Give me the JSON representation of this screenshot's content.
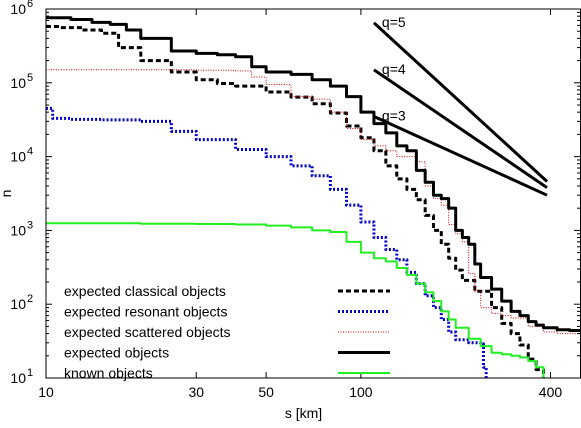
{
  "chart_data": {
    "type": "line",
    "title": "",
    "xlabel": "s [km]",
    "ylabel": "n",
    "xscale": "log",
    "yscale": "log",
    "xlim": [
      10,
      500
    ],
    "ylim": [
      10,
      1000000
    ],
    "x_ticks": [
      {
        "value": 10,
        "label": "10"
      },
      {
        "value": 30,
        "label": "30"
      },
      {
        "value": 50,
        "label": "50"
      },
      {
        "value": 100,
        "label": "100"
      },
      {
        "value": 400,
        "label": "400"
      }
    ],
    "y_ticks": [
      {
        "value": 10,
        "base": "10",
        "exp": "1"
      },
      {
        "value": 100,
        "base": "10",
        "exp": "2"
      },
      {
        "value": 1000,
        "base": "10",
        "exp": "3"
      },
      {
        "value": 10000,
        "base": "10",
        "exp": "4"
      },
      {
        "value": 100000,
        "base": "10",
        "exp": "5"
      },
      {
        "value": 1000000,
        "base": "10",
        "exp": "6"
      }
    ],
    "grid": false,
    "legend_position": "bottom-left",
    "series": [
      {
        "name": "expected classical objects",
        "color": "#000000",
        "style": "dashed",
        "width": 3,
        "points": [
          [
            10,
            580000
          ],
          [
            11,
            560000
          ],
          [
            13,
            520000
          ],
          [
            15,
            470000
          ],
          [
            17,
            300000
          ],
          [
            20,
            200000
          ],
          [
            25,
            140000
          ],
          [
            30,
            110000
          ],
          [
            35,
            98000
          ],
          [
            40,
            90000
          ],
          [
            50,
            75000
          ],
          [
            60,
            64000
          ],
          [
            70,
            52000
          ],
          [
            80,
            39000
          ],
          [
            90,
            26000
          ],
          [
            100,
            18000
          ],
          [
            110,
            12000
          ],
          [
            120,
            7500
          ],
          [
            130,
            5000
          ],
          [
            140,
            3600
          ],
          [
            150,
            2600
          ],
          [
            160,
            1600
          ],
          [
            170,
            1000
          ],
          [
            180,
            650
          ],
          [
            190,
            420
          ],
          [
            200,
            290
          ],
          [
            210,
            210
          ],
          [
            230,
            150
          ],
          [
            260,
            90
          ],
          [
            280,
            55
          ],
          [
            300,
            40
          ],
          [
            320,
            28
          ],
          [
            340,
            18
          ],
          [
            360,
            13
          ],
          [
            380,
            10
          ]
        ]
      },
      {
        "name": "expected resonant objects",
        "color": "#0000cc",
        "style": "dotted",
        "width": 3,
        "points": [
          [
            10,
            45000
          ],
          [
            10.5,
            33000
          ],
          [
            12,
            32000
          ],
          [
            15,
            31500
          ],
          [
            20,
            30000
          ],
          [
            25,
            22000
          ],
          [
            30,
            17000
          ],
          [
            40,
            12500
          ],
          [
            50,
            10000
          ],
          [
            60,
            7500
          ],
          [
            70,
            5500
          ],
          [
            80,
            3600
          ],
          [
            90,
            2200
          ],
          [
            100,
            1300
          ],
          [
            110,
            800
          ],
          [
            120,
            550
          ],
          [
            130,
            400
          ],
          [
            140,
            270
          ],
          [
            150,
            190
          ],
          [
            160,
            130
          ],
          [
            170,
            90
          ],
          [
            180,
            62
          ],
          [
            190,
            42
          ],
          [
            200,
            33
          ],
          [
            220,
            30
          ],
          [
            240,
            29
          ],
          [
            245,
            14
          ],
          [
            250,
            10
          ]
        ]
      },
      {
        "name": "expected scattered objects",
        "color": "#dd0000",
        "style": "fine-dotted",
        "width": 1,
        "points": [
          [
            10,
            150000
          ],
          [
            20,
            150000
          ],
          [
            30,
            148000
          ],
          [
            40,
            145000
          ],
          [
            45,
            120000
          ],
          [
            50,
            95000
          ],
          [
            60,
            65000
          ],
          [
            70,
            60000
          ],
          [
            80,
            40000
          ],
          [
            90,
            24000
          ],
          [
            100,
            17000
          ],
          [
            110,
            14000
          ],
          [
            120,
            12000
          ],
          [
            130,
            10000
          ],
          [
            150,
            8500
          ],
          [
            160,
            4000
          ],
          [
            170,
            2700
          ],
          [
            180,
            2200
          ],
          [
            190,
            1200
          ],
          [
            200,
            900
          ],
          [
            210,
            700
          ],
          [
            220,
            260
          ],
          [
            230,
            150
          ],
          [
            240,
            90
          ],
          [
            260,
            75
          ],
          [
            280,
            70
          ],
          [
            300,
            65
          ],
          [
            340,
            50
          ],
          [
            380,
            42
          ],
          [
            420,
            40
          ],
          [
            500,
            40
          ]
        ]
      },
      {
        "name": "expected objects",
        "color": "#000000",
        "style": "solid",
        "width": 3,
        "points": [
          [
            10,
            760000
          ],
          [
            12,
            720000
          ],
          [
            14,
            660000
          ],
          [
            16,
            620000
          ],
          [
            18,
            520000
          ],
          [
            20,
            400000
          ],
          [
            25,
            270000
          ],
          [
            30,
            250000
          ],
          [
            35,
            240000
          ],
          [
            40,
            225000
          ],
          [
            45,
            165000
          ],
          [
            50,
            140000
          ],
          [
            60,
            130000
          ],
          [
            70,
            110000
          ],
          [
            80,
            90000
          ],
          [
            90,
            65000
          ],
          [
            100,
            40000
          ],
          [
            110,
            28000
          ],
          [
            120,
            21000
          ],
          [
            130,
            14000
          ],
          [
            140,
            12000
          ],
          [
            150,
            6500
          ],
          [
            160,
            4500
          ],
          [
            170,
            3000
          ],
          [
            180,
            2700
          ],
          [
            190,
            2000
          ],
          [
            200,
            1000
          ],
          [
            210,
            800
          ],
          [
            220,
            650
          ],
          [
            230,
            350
          ],
          [
            240,
            230
          ],
          [
            260,
            160
          ],
          [
            280,
            110
          ],
          [
            300,
            80
          ],
          [
            320,
            70
          ],
          [
            340,
            58
          ],
          [
            360,
            52
          ],
          [
            380,
            48
          ],
          [
            420,
            45
          ],
          [
            460,
            44
          ],
          [
            500,
            43
          ]
        ]
      },
      {
        "name": "known objects",
        "color": "#22ee22",
        "style": "solid",
        "width": 2,
        "points": [
          [
            10,
            1250
          ],
          [
            20,
            1230
          ],
          [
            30,
            1220
          ],
          [
            40,
            1200
          ],
          [
            50,
            1160
          ],
          [
            60,
            1100
          ],
          [
            70,
            1000
          ],
          [
            80,
            950
          ],
          [
            90,
            700
          ],
          [
            100,
            500
          ],
          [
            110,
            420
          ],
          [
            120,
            380
          ],
          [
            130,
            310
          ],
          [
            140,
            250
          ],
          [
            150,
            190
          ],
          [
            160,
            145
          ],
          [
            170,
            110
          ],
          [
            180,
            80
          ],
          [
            190,
            62
          ],
          [
            200,
            48
          ],
          [
            220,
            34
          ],
          [
            240,
            27
          ],
          [
            260,
            22
          ],
          [
            280,
            21
          ],
          [
            300,
            20
          ],
          [
            320,
            19
          ],
          [
            340,
            17
          ],
          [
            360,
            14
          ],
          [
            380,
            10
          ]
        ]
      },
      {
        "name": "q=5",
        "color": "#000000",
        "style": "solid",
        "width": 3,
        "label": "q=5",
        "points": [
          [
            110,
            650000
          ],
          [
            390,
            4600
          ]
        ]
      },
      {
        "name": "q=4",
        "color": "#000000",
        "style": "solid",
        "width": 3,
        "label": "q=4",
        "points": [
          [
            110,
            150000
          ],
          [
            390,
            3800
          ]
        ]
      },
      {
        "name": "q=3",
        "color": "#000000",
        "style": "solid",
        "width": 3,
        "label": "q=3",
        "points": [
          [
            110,
            35000
          ],
          [
            390,
            3000
          ]
        ]
      }
    ],
    "legend": [
      "expected classical objects",
      "expected resonant objects",
      "expected scattered objects",
      "expected objects",
      "known objects"
    ]
  }
}
